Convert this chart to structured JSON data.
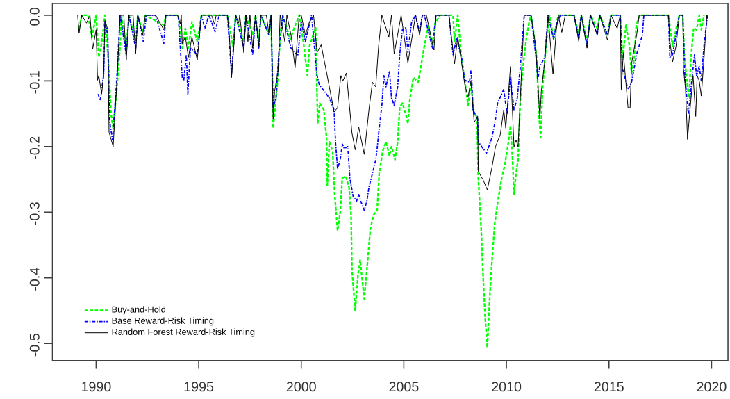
{
  "chart_data": {
    "type": "line",
    "xlim": [
      1987.87,
      2020.8
    ],
    "ylim": [
      -0.526,
      0.018
    ],
    "xticks": [
      1990,
      1995,
      2000,
      2005,
      2010,
      2015,
      2020
    ],
    "yticks": [
      {
        "value": 0,
        "label": "0.0"
      },
      -0.1,
      -0.2,
      -0.3,
      -0.4,
      -0.5
    ],
    "grid": false,
    "legend": "bottom left",
    "marker": "none",
    "series": [
      {
        "name": "Buy-and-Hold",
        "color": "#00ff00",
        "line_style": "dashed",
        "x": [
          1989.17,
          1989.3,
          1989.6,
          1989.8,
          1990.0,
          1990.13,
          1990.27,
          1990.43,
          1990.6,
          1990.73,
          1990.83,
          1991.0,
          1991.17,
          1991.23,
          1991.47,
          1991.6,
          1991.93,
          1992.03,
          1992.27,
          1992.4,
          1993.3,
          1993.4,
          1994.0,
          1994.2,
          1994.35,
          1994.5,
          1994.67,
          1994.93,
          1995.13,
          1996.4,
          1996.67,
          1996.8,
          1997.2,
          1997.3,
          1997.63,
          1997.77,
          1997.93,
          1998.03,
          1998.43,
          1998.53,
          1998.6,
          1998.63,
          1998.87,
          1998.97,
          1999.1,
          1999.47,
          1999.65,
          1999.9,
          2000.1,
          2000.3,
          2000.4,
          2000.7,
          2000.8,
          2000.9,
          2001.1,
          2001.23,
          2001.27,
          2001.37,
          2001.53,
          2001.63,
          2001.77,
          2001.9,
          2002.0,
          2002.17,
          2002.33,
          2002.43,
          2002.47,
          2002.63,
          2002.77,
          2002.87,
          2003.0,
          2003.07,
          2003.2,
          2003.37,
          2003.53,
          2003.7,
          2003.8,
          2003.97,
          2004.13,
          2004.3,
          2004.4,
          2004.57,
          2004.7,
          2004.8,
          2004.93,
          2005.1,
          2005.2,
          2005.3,
          2005.47,
          2005.7,
          2005.87,
          2006.0,
          2006.2,
          2006.37,
          2006.53,
          2006.77,
          2007.4,
          2007.47,
          2007.63,
          2007.8,
          2007.97,
          2008.13,
          2008.27,
          2008.43,
          2008.57,
          2008.63,
          2008.77,
          2008.87,
          2008.97,
          2009.07,
          2009.2,
          2009.3,
          2009.43,
          2009.6,
          2009.77,
          2009.93,
          2010.1,
          2010.2,
          2010.3,
          2010.37,
          2010.47,
          2010.57,
          2010.67,
          2010.8,
          2010.97,
          2011.1,
          2011.2,
          2011.3,
          2011.47,
          2011.6,
          2011.67,
          2011.77,
          2011.93,
          2012.1,
          2012.3,
          2012.53,
          2013.3,
          2013.53,
          2013.65,
          2013.93,
          2014.1,
          2014.43,
          2014.55,
          2014.93,
          2015.1,
          2015.55,
          2015.67,
          2015.83,
          2016.0,
          2016.1,
          2016.23,
          2016.33,
          2016.5,
          2017.9,
          2018.1,
          2018.33,
          2018.43,
          2018.6,
          2018.67,
          2018.83,
          2018.9,
          2019.0,
          2019.13,
          2019.27,
          2019.4,
          2019.5,
          2019.63
        ],
        "values": [
          -0.02,
          0,
          0,
          -0.033,
          0,
          -0.064,
          -0.043,
          0,
          -0.071,
          -0.151,
          -0.172,
          -0.116,
          -0.047,
          0,
          -0.05,
          0,
          -0.04,
          0,
          -0.025,
          0,
          -0.015,
          0,
          0,
          -0.05,
          -0.02,
          -0.05,
          -0.01,
          -0.04,
          0,
          0,
          -0.047,
          0,
          -0.04,
          0,
          -0.03,
          0,
          -0.04,
          0,
          -0.03,
          0,
          -0.126,
          -0.172,
          -0.092,
          -0.03,
          0,
          -0.037,
          -0.02,
          0,
          -0.04,
          -0.092,
          -0.047,
          -0.019,
          -0.165,
          -0.134,
          -0.144,
          -0.186,
          -0.259,
          -0.193,
          -0.207,
          -0.273,
          -0.328,
          -0.3,
          -0.248,
          -0.245,
          -0.262,
          -0.304,
          -0.387,
          -0.45,
          -0.394,
          -0.373,
          -0.411,
          -0.432,
          -0.387,
          -0.325,
          -0.304,
          -0.297,
          -0.241,
          -0.207,
          -0.193,
          -0.214,
          -0.2,
          -0.22,
          -0.193,
          -0.14,
          -0.134,
          -0.151,
          -0.165,
          -0.126,
          -0.095,
          -0.102,
          -0.071,
          -0.047,
          -0.015,
          -0.047,
          -0.012,
          0,
          0,
          -0.04,
          0,
          -0.064,
          -0.099,
          -0.137,
          -0.105,
          -0.151,
          -0.154,
          -0.248,
          -0.325,
          -0.401,
          -0.464,
          -0.506,
          -0.422,
          -0.373,
          -0.318,
          -0.28,
          -0.248,
          -0.227,
          -0.193,
          -0.168,
          -0.22,
          -0.273,
          -0.241,
          -0.22,
          -0.134,
          -0.081,
          -0.036,
          -0.012,
          0,
          -0.019,
          -0.064,
          -0.158,
          -0.186,
          -0.109,
          -0.047,
          0,
          -0.036,
          0,
          0,
          -0.03,
          0,
          -0.04,
          0,
          -0.02,
          0,
          -0.03,
          0,
          0,
          -0.067,
          -0.015,
          -0.047,
          -0.088,
          -0.067,
          -0.015,
          0,
          0,
          -0.047,
          -0.012,
          0,
          0,
          -0.06,
          -0.109,
          -0.126,
          -0.064,
          -0.019,
          -0.022,
          0,
          -0.022,
          0
        ]
      },
      {
        "name": "Base Reward-Risk Timing",
        "color": "#0000ff",
        "line_style": "dashdot",
        "x": [
          1990.1,
          1990.2,
          1990.37,
          1990.43,
          1990.57,
          1990.65,
          1990.8,
          1991.0,
          1991.17,
          1991.47,
          1991.6,
          1991.93,
          1992.03,
          1992.3,
          1992.45,
          1992.9,
          1993.3,
          1993.4,
          1994.0,
          1994.2,
          1994.27,
          1994.4,
          1994.47,
          1994.6,
          1994.93,
          1995.13,
          1995.3,
          1995.5,
          1995.8,
          1996.0,
          1996.4,
          1996.6,
          1996.8,
          1997.2,
          1997.3,
          1997.63,
          1997.77,
          1997.93,
          1998.03,
          1998.43,
          1998.53,
          1998.63,
          1998.77,
          1998.9,
          1999.1,
          1999.5,
          1999.83,
          2000.0,
          2000.2,
          2000.5,
          2000.77,
          2000.87,
          2001.13,
          2001.37,
          2001.6,
          2001.67,
          2001.77,
          2001.9,
          2002.0,
          2002.1,
          2002.27,
          2002.37,
          2002.53,
          2002.7,
          2002.8,
          2002.9,
          2003.07,
          2003.2,
          2003.3,
          2003.47,
          2003.63,
          2003.7,
          2003.8,
          2003.93,
          2004.03,
          2004.13,
          2004.3,
          2004.4,
          2004.53,
          2004.7,
          2004.8,
          2004.93,
          2005.1,
          2005.2,
          2005.37,
          2005.57,
          2005.77,
          2005.9,
          2006.0,
          2006.4,
          2006.57,
          2007.2,
          2007.4,
          2007.57,
          2007.83,
          2007.97,
          2008.2,
          2008.27,
          2008.3,
          2008.37,
          2008.6,
          2008.63,
          2009.03,
          2009.3,
          2009.47,
          2009.57,
          2009.87,
          2010.03,
          2010.2,
          2010.37,
          2010.53,
          2010.67,
          2010.87,
          2011.2,
          2011.47,
          2011.53,
          2011.63,
          2011.87,
          2012.03,
          2012.3,
          2012.43,
          2012.63,
          2013.3,
          2013.53,
          2013.65,
          2013.93,
          2014.1,
          2014.43,
          2014.55,
          2014.93,
          2015.1,
          2015.55,
          2015.65,
          2015.93,
          2016.1,
          2016.37,
          2016.63,
          2016.7,
          2017.9,
          2017.97,
          2018.1,
          2018.27,
          2018.43,
          2018.6,
          2018.7,
          2018.87,
          2018.97,
          2019.17,
          2019.27,
          2019.4,
          2019.5,
          2019.63,
          2019.8
        ],
        "values": [
          -0.12,
          -0.13,
          -0.09,
          -0.01,
          -0.03,
          -0.16,
          -0.19,
          -0.1,
          0,
          -0.06,
          0,
          -0.05,
          0,
          -0.04,
          0,
          0,
          -0.043,
          0,
          0,
          -0.095,
          -0.1,
          -0.06,
          -0.12,
          -0.05,
          -0.06,
          0,
          -0.02,
          0,
          -0.025,
          0,
          0,
          -0.09,
          0,
          -0.05,
          0,
          -0.06,
          0,
          -0.05,
          0,
          -0.03,
          0,
          -0.14,
          -0.126,
          -0.06,
          0,
          -0.05,
          -0.062,
          -0.01,
          -0.04,
          0,
          -0.092,
          -0.105,
          -0.116,
          -0.126,
          -0.144,
          -0.193,
          -0.234,
          -0.22,
          -0.196,
          -0.203,
          -0.2,
          -0.248,
          -0.276,
          -0.283,
          -0.273,
          -0.283,
          -0.297,
          -0.283,
          -0.262,
          -0.241,
          -0.22,
          -0.203,
          -0.172,
          -0.137,
          -0.092,
          -0.109,
          -0.085,
          -0.126,
          -0.137,
          -0.109,
          -0.06,
          -0.022,
          -0.019,
          -0.057,
          -0.012,
          0,
          -0.026,
          0,
          0,
          -0.05,
          0,
          0,
          -0.06,
          -0.036,
          -0.067,
          -0.099,
          -0.102,
          -0.085,
          -0.088,
          -0.144,
          -0.158,
          -0.193,
          -0.21,
          -0.186,
          -0.158,
          -0.134,
          -0.113,
          -0.151,
          -0.095,
          -0.144,
          -0.126,
          -0.081,
          0,
          0,
          -0.071,
          -0.099,
          -0.078,
          -0.064,
          0,
          -0.036,
          -0.015,
          0,
          0,
          -0.035,
          0,
          -0.045,
          0,
          -0.03,
          0,
          -0.03,
          0,
          0,
          -0.08,
          -0.113,
          -0.102,
          -0.057,
          -0.03,
          0,
          0,
          -0.064,
          -0.06,
          -0.03,
          0,
          0,
          -0.092,
          -0.151,
          -0.12,
          -0.06,
          -0.092,
          -0.078,
          -0.1,
          -0.047,
          0
        ]
      },
      {
        "name": "Random Forest Reward-Risk Timing",
        "color": "#000000",
        "line_style": "solid",
        "x": [
          1989.1,
          1989.17,
          1989.3,
          1989.53,
          1989.7,
          1989.83,
          1990.0,
          1990.07,
          1990.13,
          1990.27,
          1990.37,
          1990.43,
          1990.57,
          1990.63,
          1990.83,
          1991.03,
          1991.17,
          1991.35,
          1991.47,
          1991.6,
          1991.8,
          1991.93,
          1992.03,
          1992.27,
          1992.4,
          1992.9,
          1993.3,
          1993.4,
          1993.97,
          1994.1,
          1994.15,
          1994.2,
          1994.35,
          1994.5,
          1994.67,
          1994.93,
          1995.13,
          1995.63,
          1995.77,
          1995.85,
          1996.4,
          1996.5,
          1996.6,
          1996.73,
          1996.8,
          1996.95,
          1997.0,
          1997.2,
          1997.3,
          1997.4,
          1997.5,
          1997.63,
          1997.77,
          1997.93,
          1998.03,
          1998.3,
          1998.43,
          1998.53,
          1998.63,
          1998.7,
          1998.87,
          1998.97,
          1999.2,
          1999.3,
          1999.5,
          1999.7,
          1999.9,
          2000.0,
          2000.2,
          2000.4,
          2000.6,
          2000.77,
          2000.97,
          2001.27,
          2001.6,
          2001.77,
          2001.93,
          2002.03,
          2002.2,
          2002.47,
          2002.63,
          2002.8,
          2003.07,
          2003.3,
          2003.47,
          2003.63,
          2003.77,
          2003.93,
          2004.27,
          2004.4,
          2004.53,
          2004.87,
          2005.2,
          2005.57,
          2005.77,
          2005.9,
          2006.1,
          2006.47,
          2006.57,
          2007.2,
          2007.47,
          2007.63,
          2007.97,
          2008.13,
          2008.27,
          2008.43,
          2008.6,
          2008.63,
          2008.87,
          2009.07,
          2009.3,
          2009.47,
          2009.7,
          2009.87,
          2009.97,
          2010.2,
          2010.37,
          2010.47,
          2010.57,
          2010.77,
          2010.87,
          2011.2,
          2011.43,
          2011.53,
          2011.63,
          2011.7,
          2011.87,
          2012.03,
          2012.27,
          2012.43,
          2012.53,
          2012.7,
          2012.87,
          2013.3,
          2013.53,
          2013.65,
          2013.93,
          2014.1,
          2014.43,
          2014.55,
          2014.93,
          2015.1,
          2015.4,
          2015.55,
          2015.6,
          2015.7,
          2015.93,
          2016.03,
          2016.1,
          2016.37,
          2016.47,
          2017.9,
          2017.97,
          2018.1,
          2018.27,
          2018.43,
          2018.6,
          2018.63,
          2018.73,
          2018.83,
          2018.93,
          2019.1,
          2019.23,
          2019.3,
          2019.4,
          2019.5,
          2019.63,
          2019.77
        ],
        "values": [
          0,
          -0.027,
          0,
          -0.012,
          0,
          -0.052,
          -0.022,
          -0.099,
          -0.092,
          -0.12,
          -0.09,
          -0.008,
          -0.022,
          -0.178,
          -0.2,
          -0.092,
          0,
          0,
          -0.069,
          0,
          0,
          -0.058,
          0,
          -0.03,
          0,
          0,
          -0.022,
          0,
          0,
          -0.013,
          0,
          -0.043,
          -0.033,
          -0.064,
          -0.033,
          -0.068,
          0,
          0,
          -0.014,
          0,
          0,
          -0.033,
          -0.095,
          -0.04,
          0,
          -0.012,
          0,
          -0.057,
          0,
          -0.04,
          0,
          -0.05,
          0,
          -0.047,
          0,
          0,
          -0.03,
          0,
          -0.158,
          -0.116,
          -0.085,
          0,
          -0.04,
          0,
          -0.03,
          -0.08,
          0,
          0,
          -0.03,
          -0.01,
          0,
          -0.057,
          -0.045,
          -0.093,
          -0.147,
          -0.141,
          -0.092,
          -0.1,
          -0.088,
          -0.179,
          -0.205,
          -0.17,
          -0.212,
          -0.144,
          -0.102,
          -0.109,
          -0.047,
          0,
          -0.033,
          0,
          -0.059,
          0,
          -0.073,
          0,
          -0.03,
          0,
          0,
          -0.053,
          0,
          0,
          -0.074,
          -0.033,
          -0.105,
          -0.125,
          -0.1,
          -0.163,
          -0.154,
          -0.238,
          -0.251,
          -0.266,
          -0.231,
          -0.2,
          -0.182,
          -0.144,
          -0.172,
          -0.078,
          -0.2,
          -0.19,
          -0.2,
          -0.064,
          0,
          0,
          -0.047,
          -0.099,
          -0.158,
          -0.116,
          -0.07,
          0,
          -0.09,
          -0.023,
          0,
          -0.026,
          0,
          0,
          -0.04,
          0,
          -0.05,
          0,
          -0.03,
          0,
          -0.038,
          0,
          -0.02,
          0,
          -0.113,
          -0.057,
          -0.141,
          -0.141,
          -0.074,
          -0.026,
          0,
          0,
          -0.04,
          -0.071,
          -0.047,
          0,
          0,
          -0.081,
          -0.112,
          -0.189,
          -0.151,
          -0.092,
          -0.154,
          -0.092,
          -0.1,
          -0.123,
          -0.067,
          0
        ]
      }
    ]
  }
}
